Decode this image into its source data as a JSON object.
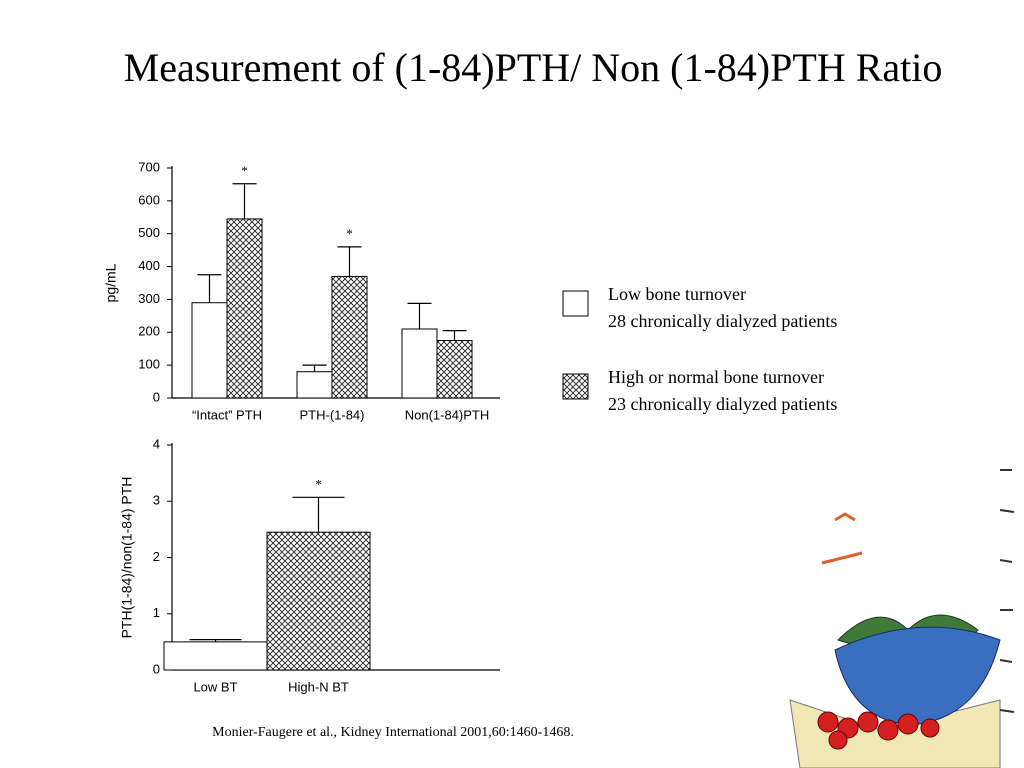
{
  "title": "Measurement of (1-84)PTH/ Non (1-84)PTH Ratio",
  "citation": "Monier-Faugere et al., Kidney International 2001,60:1460-1468.",
  "chart_data": [
    {
      "type": "bar",
      "ylabel": "pg/mL",
      "categories": [
        "“Intact” PTH",
        "PTH-(1-84)",
        "Non(1-84)PTH"
      ],
      "series": [
        {
          "name": "Low bone turnover",
          "detail": "28 chronically dialyzed patients",
          "color": "#ffffff",
          "values": [
            290,
            80,
            210
          ],
          "errors": [
            85,
            20,
            78
          ],
          "markers": [
            null,
            null,
            null
          ]
        },
        {
          "name": "High or normal bone turnover",
          "detail": "23 chronically dialyzed  patients",
          "color": "crosshatch",
          "values": [
            545,
            370,
            175
          ],
          "errors": [
            107,
            90,
            30
          ],
          "markers": [
            "*",
            "*",
            null
          ]
        }
      ],
      "ylim": [
        0,
        700
      ],
      "yticks": [
        0,
        100,
        200,
        300,
        400,
        500,
        600,
        700
      ]
    },
    {
      "type": "bar",
      "ylabel": "PTH(1-84)/non(1-84) PTH",
      "categories": [
        "Low BT",
        "High-N BT"
      ],
      "series": [
        {
          "colors": [
            "#ffffff",
            "crosshatch"
          ],
          "values": [
            0.5,
            2.45
          ],
          "errors": [
            0.04,
            0.62
          ],
          "markers": [
            null,
            "*"
          ]
        }
      ],
      "ylim": [
        0,
        4
      ],
      "yticks": [
        0,
        1,
        2,
        3,
        4
      ]
    }
  ]
}
